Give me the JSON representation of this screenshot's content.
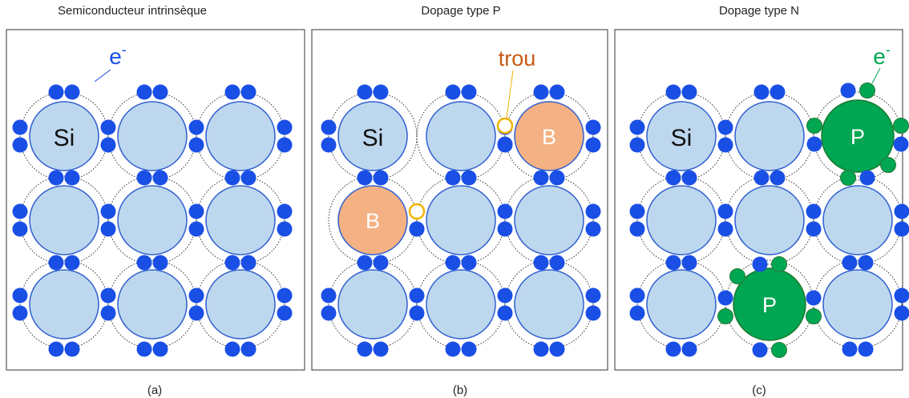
{
  "panels": [
    {
      "title": "Semiconducteur intrinsèque",
      "caption": "(a)",
      "atom": "Si",
      "electron": {
        "base": "e",
        "sup": "-"
      }
    },
    {
      "title": "Dopage type P",
      "caption": "(b)",
      "atom": "Si",
      "dopant": "B",
      "hole": "trou"
    },
    {
      "title": "Dopage type N",
      "caption": "(c)",
      "atom": "Si",
      "dopant": "P",
      "electron": {
        "base": "e",
        "sup": "-"
      }
    }
  ]
}
